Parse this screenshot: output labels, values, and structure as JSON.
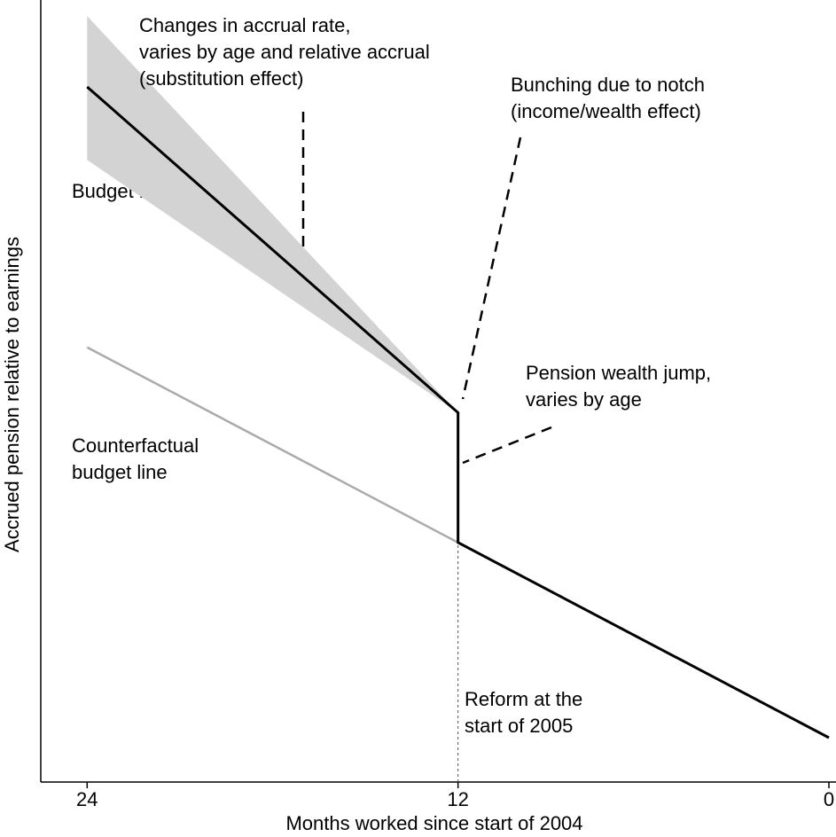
{
  "chart_data": {
    "type": "line",
    "x_label": "Months worked since start of 2004",
    "y_label": "Accrued pension relative to earnings",
    "xlim": [
      25.5,
      0
    ],
    "xticks": [
      24,
      12,
      0
    ],
    "ylim": [
      0,
      100
    ],
    "band": {
      "x": [
        24,
        12
      ],
      "upper": [
        98.5,
        47.5
      ],
      "lower": [
        80,
        47.5
      ],
      "color": "#d3d3d3"
    },
    "series": [
      {
        "name": "Budget line",
        "color": "#000000",
        "x": [
          24,
          12,
          12,
          0
        ],
        "values": [
          89.4,
          47.5,
          30.8,
          5.7
        ]
      },
      {
        "name_lines": [
          "Counterfactual",
          "budget line"
        ],
        "color": "#aaaaaa",
        "x": [
          24,
          12
        ],
        "values": [
          55.9,
          30.8
        ]
      }
    ],
    "annotations": [
      {
        "lines": [
          "Changes in accrual rate,",
          "varies by age and relative accrual",
          "(substitution effect)"
        ]
      },
      {
        "lines": [
          "Bunching due to notch",
          "(income/wealth effect)"
        ]
      },
      {
        "lines": [
          "Pension wealth jump,",
          "varies by age"
        ]
      },
      {
        "lines": [
          "Reform at the",
          "start of 2005"
        ]
      }
    ]
  }
}
